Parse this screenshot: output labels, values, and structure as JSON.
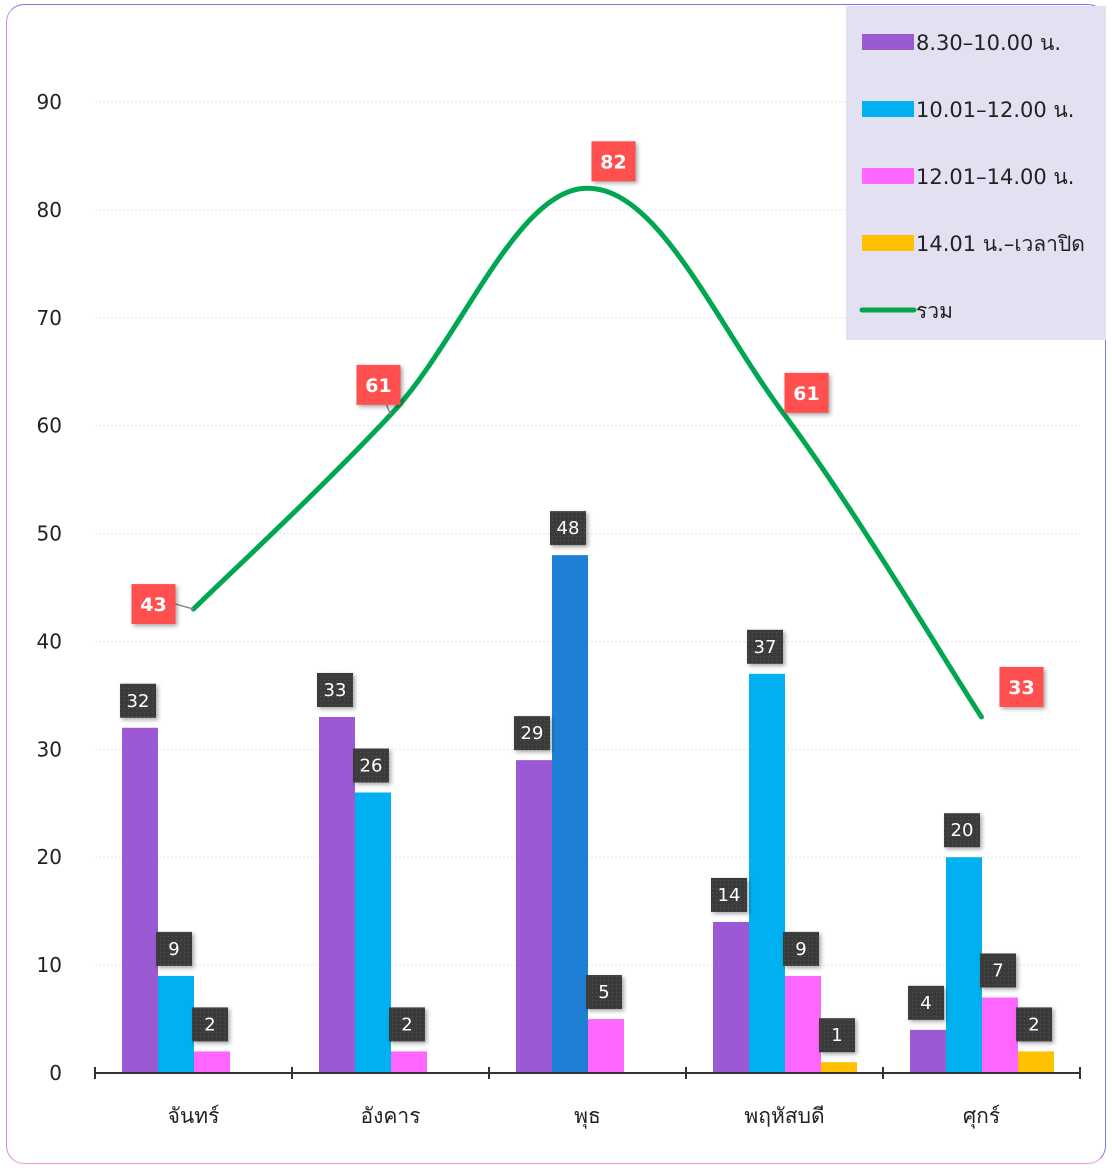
{
  "chart_data": {
    "type": "bar",
    "title": "",
    "xlabel": "",
    "ylabel": "",
    "categories": [
      "จันทร์",
      "อังคาร",
      "พุธ",
      "พฤหัสบดี",
      "ศุกร์"
    ],
    "ylim": [
      0,
      90
    ],
    "yticks": [
      0,
      10,
      20,
      30,
      40,
      50,
      60,
      70,
      80,
      90
    ],
    "grid": true,
    "legend_position": "top-right",
    "series": [
      {
        "name": "8.30–10.00 น.",
        "kind": "bar",
        "color": "#9b59d3",
        "values": [
          32,
          33,
          29,
          14,
          4
        ]
      },
      {
        "name": "10.01–12.00 น.",
        "kind": "bar",
        "color": "#00b0f0",
        "values": [
          9,
          26,
          48,
          37,
          20
        ]
      },
      {
        "name": "12.01–14.00 น.",
        "kind": "bar",
        "color": "#ff66ff",
        "values": [
          2,
          2,
          5,
          9,
          7
        ]
      },
      {
        "name": "14.01 น.–เวลาปิด",
        "kind": "bar",
        "color": "#ffc000",
        "values": [
          null,
          null,
          null,
          1,
          2
        ]
      },
      {
        "name": "รวม",
        "kind": "line",
        "color": "#00a650",
        "values": [
          43,
          61,
          82,
          61,
          33
        ]
      }
    ],
    "highlight": {
      "series": 1,
      "category": 2,
      "color": "#1e80d4"
    }
  }
}
